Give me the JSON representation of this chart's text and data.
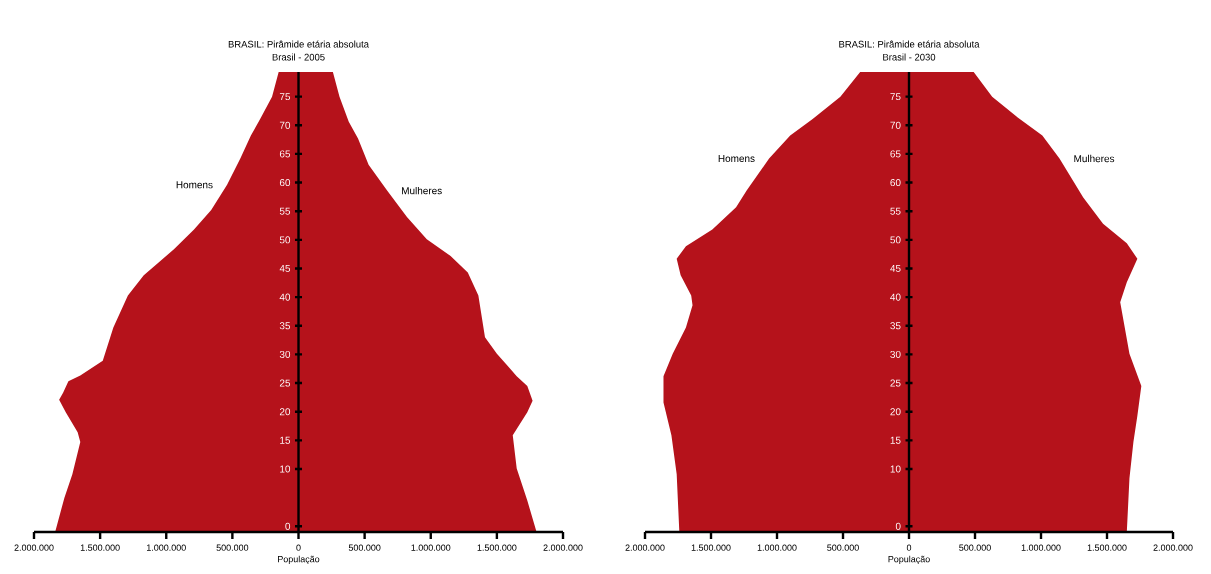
{
  "chart_data": [
    {
      "type": "area",
      "orientation": "horizontal",
      "title": "BRASIL: Pirâmide etária absoluta",
      "subtitle": "Brasil - 2005",
      "xlabel": "População",
      "xlim": [
        -2000000,
        2000000
      ],
      "ylim": [
        -1,
        79.3
      ],
      "xticks": [
        {
          "value": -2000000,
          "label": "2.000.000"
        },
        {
          "value": -1500000,
          "label": "1.500.000"
        },
        {
          "value": -1000000,
          "label": "1.000.000"
        },
        {
          "value": -500000,
          "label": "500.000"
        },
        0,
        {
          "value": 500000,
          "label": "500.000"
        },
        {
          "value": 1000000,
          "label": "1.000.000"
        },
        {
          "value": 1500000,
          "label": "1.500.000"
        },
        {
          "value": 2000000,
          "label": "2.000.000"
        }
      ],
      "yticks": [
        0,
        10,
        15,
        20,
        25,
        30,
        35,
        40,
        45,
        50,
        55,
        60,
        65,
        70,
        75
      ],
      "series": [
        {
          "name": "Homens",
          "color": "#b5121b",
          "x": [
            -1,
            5.0,
            9.1,
            14.7,
            16.4,
            19.9,
            22.1,
            23.3,
            25.3,
            26.3,
            28.9,
            34.7,
            40.3,
            43.8,
            46.0,
            48.4,
            51.8,
            55.2,
            59.6,
            64.2,
            68.2,
            71.1,
            75.0,
            79.3
          ],
          "values": [
            -1840000,
            -1770000,
            -1710000,
            -1650000,
            -1670000,
            -1760000,
            -1810000,
            -1780000,
            -1740000,
            -1650000,
            -1480000,
            -1400000,
            -1290000,
            -1170000,
            -1060000,
            -940000,
            -790000,
            -660000,
            -540000,
            -440000,
            -360000,
            -290000,
            -200000,
            -150000
          ]
        },
        {
          "name": "Mulheres",
          "color": "#b5121b",
          "x": [
            -1,
            4.5,
            10.1,
            15.9,
            19.9,
            21.9,
            24.5,
            26.2,
            30.1,
            33.0,
            40.3,
            44.3,
            47.2,
            50.1,
            54.0,
            58.6,
            63.1,
            67.7,
            70.6,
            75.0,
            79.3
          ],
          "values": [
            1800000,
            1730000,
            1650000,
            1620000,
            1730000,
            1770000,
            1730000,
            1650000,
            1500000,
            1410000,
            1360000,
            1280000,
            1150000,
            970000,
            820000,
            670000,
            530000,
            450000,
            380000,
            310000,
            260000
          ]
        }
      ]
    },
    {
      "type": "area",
      "orientation": "horizontal",
      "title": "BRASIL: Pirâmide etária absoluta",
      "subtitle": "Brasil - 2030",
      "xlabel": "População",
      "xlim": [
        -2000000,
        2000000
      ],
      "ylim": [
        -1,
        79.3
      ],
      "xticks": [
        {
          "value": -2000000,
          "label": "2.000.000"
        },
        {
          "value": -1500000,
          "label": "1.500.000"
        },
        {
          "value": -1000000,
          "label": "1.000.000"
        },
        {
          "value": -500000,
          "label": "500.000"
        },
        0,
        {
          "value": 500000,
          "label": "500.000"
        },
        {
          "value": 1000000,
          "label": "1.000.000"
        },
        {
          "value": 1500000,
          "label": "1.500.000"
        },
        {
          "value": 2000000,
          "label": "2.000.000"
        }
      ],
      "yticks": [
        0,
        10,
        15,
        20,
        25,
        30,
        35,
        40,
        45,
        50,
        55,
        60,
        65,
        70,
        75
      ],
      "series": [
        {
          "name": "Homens",
          "color": "#b5121b",
          "x": [
            -1,
            9.1,
            15.9,
            21.6,
            26.2,
            30.1,
            34.7,
            38.6,
            40.3,
            43.8,
            46.7,
            48.9,
            51.8,
            55.7,
            58.6,
            64.2,
            68.2,
            71.1,
            75.0,
            79.3
          ],
          "values": [
            -1740000,
            -1760000,
            -1800000,
            -1860000,
            -1860000,
            -1790000,
            -1690000,
            -1640000,
            -1650000,
            -1730000,
            -1760000,
            -1690000,
            -1490000,
            -1310000,
            -1230000,
            -1060000,
            -900000,
            -730000,
            -520000,
            -370000
          ]
        },
        {
          "name": "Mulheres",
          "color": "#b5121b",
          "x": [
            -1,
            8.4,
            14.7,
            19.3,
            24.5,
            30.1,
            39.1,
            42.6,
            46.7,
            49.4,
            52.8,
            57.4,
            64.2,
            68.2,
            71.6,
            75.0,
            79.3
          ],
          "values": [
            1650000,
            1670000,
            1700000,
            1730000,
            1760000,
            1670000,
            1600000,
            1650000,
            1730000,
            1650000,
            1470000,
            1320000,
            1140000,
            1010000,
            810000,
            630000,
            490000
          ]
        }
      ]
    }
  ]
}
